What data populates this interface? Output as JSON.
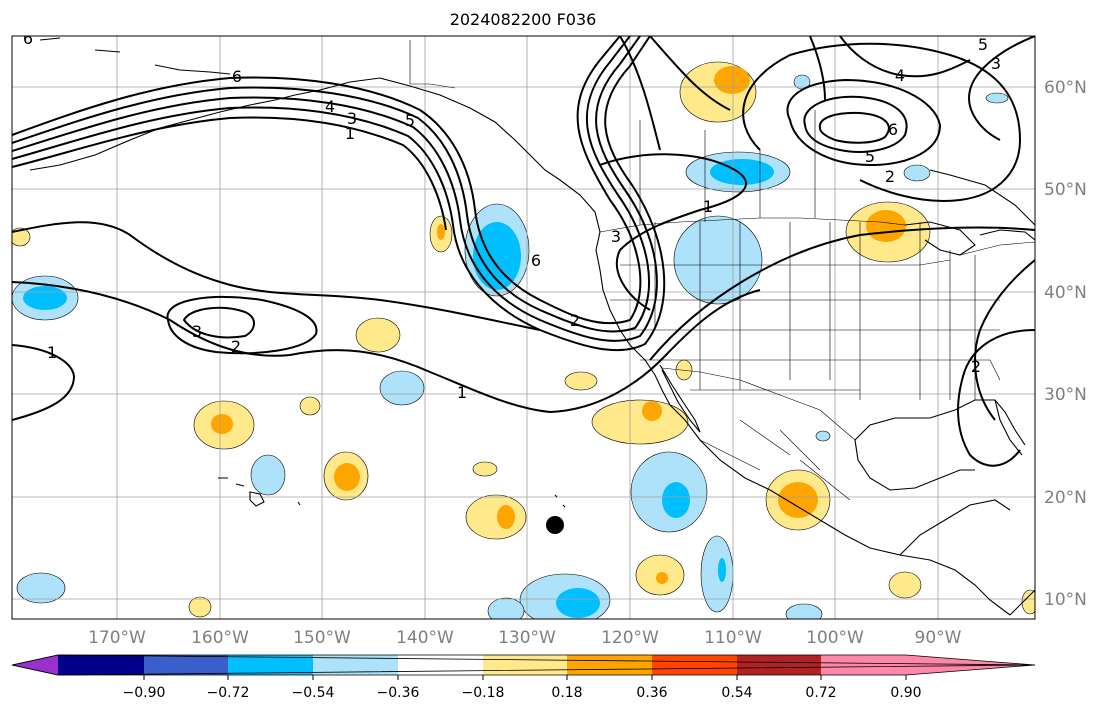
{
  "title": "2024082200 F036",
  "map": {
    "lon_ticks": [
      "170°W",
      "160°W",
      "150°W",
      "140°W",
      "130°W",
      "120°W",
      "110°W",
      "100°W",
      "90°W"
    ],
    "lat_ticks": [
      "60°N",
      "50°N",
      "40°N",
      "30°N",
      "20°N",
      "10°N"
    ],
    "contour_labels": [
      "6",
      "6",
      "4",
      "3",
      "5",
      "1",
      "1",
      "6",
      "3",
      "2",
      "1",
      "1",
      "2",
      "6",
      "5",
      "2",
      "4",
      "5",
      "3",
      "2",
      "3"
    ],
    "marker": "storm-center-dot"
  },
  "colorbar": {
    "ticks": [
      "−0.90",
      "−0.72",
      "−0.54",
      "−0.36",
      "−0.18",
      "0.18",
      "0.36",
      "0.54",
      "0.72",
      "0.90"
    ],
    "colors": [
      "#9932CC",
      "#00008B",
      "#3A5FCD",
      "#00BFFF",
      "#ADE2FA",
      "#FFFFFF",
      "#FFE98A",
      "#FFA500",
      "#FF4500",
      "#B22222",
      "#FF88AA"
    ]
  }
}
